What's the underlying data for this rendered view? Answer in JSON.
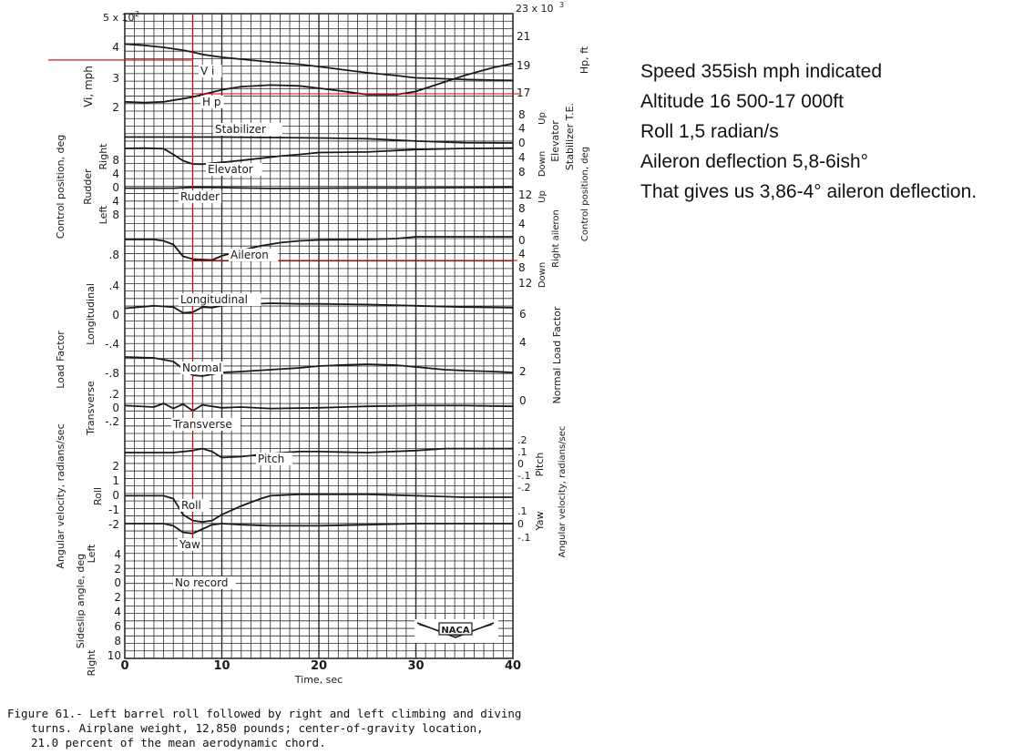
{
  "chart_data": {
    "type": "line",
    "figure_caption": "Figure 61.- Left barrel roll followed by right and left climbing and diving turns. Airplane weight, 12,850 pounds; center-of-gravity location, 21.0 percent of the mean aerodynamic chord.",
    "caption_lines": [
      "Figure 61.- Left barrel roll followed by right and left climbing and diving",
      "turns.  Airplane weight, 12,850 pounds; center-of-gravity location,",
      "21.0 percent of the mean aerodynamic chord."
    ],
    "xlabel": "Time, sec",
    "xlim": [
      0,
      40
    ],
    "x_ticks": [
      "0",
      "10",
      "20",
      "30",
      "40"
    ],
    "grid": true,
    "logo": "NACA",
    "left_axis": {
      "exponent": "5 x 10",
      "exponent_power": "2",
      "speed_ticks": [
        "4",
        "3",
        "2"
      ],
      "speed_label": "V_i, mph",
      "control_ticks": [
        "8",
        "4",
        "0",
        "4",
        "8"
      ],
      "control_label": "Control position, deg",
      "control_right": "Right",
      "control_left": "Left",
      "control_rudder": "Rudder",
      "long_ticks": [
        ".8",
        ".4",
        "0",
        "-.4",
        "-.8"
      ],
      "long_label": "Longitudinal",
      "load_label": "Load Factor",
      "trans_ticks": [
        ".2",
        "0",
        "-.2"
      ],
      "trans_label": "Transverse",
      "roll_ticks": [
        "2",
        "1",
        "0",
        "-1",
        "-2"
      ],
      "angvel_label": "Angular velocity, radians/sec",
      "roll_label": "Roll",
      "sideslip_ticks": [
        "4",
        "2",
        "0",
        "2",
        "4",
        "6",
        "8",
        "10"
      ],
      "sideslip_label": "Sideslip angle, deg",
      "sideslip_left": "Left",
      "sideslip_right": "Right"
    },
    "right_axis": {
      "alt_exponent": "23 x 10",
      "alt_exponent_power": "3",
      "alt_ticks": [
        "21",
        "19",
        "17"
      ],
      "alt_label": "H_p, ft",
      "elevator_ticks": [
        "8",
        "4",
        "0",
        "4",
        "8",
        "12"
      ],
      "elevator_up": "Up",
      "elevator_down": "Down",
      "elevator_label": "Elevator",
      "stabilizer_label": "Stabilizer T.E.",
      "control_label": "Control position, deg",
      "aileron_ticks": [
        "8",
        "4",
        "0",
        "4",
        "8",
        "12"
      ],
      "aileron_up": "Up",
      "aileron_down": "Down",
      "aileron_label": "Right aileron",
      "normal_ticks": [
        "6",
        "4",
        "2",
        "0"
      ],
      "normal_label": "Normal Load Factor",
      "pitch_ticks": [
        ".2",
        ".1",
        "0",
        "-.1",
        "-.2"
      ],
      "pitch_label": "Pitch",
      "yaw_ticks": [
        ".1",
        "0",
        "-.1"
      ],
      "yaw_label": "Yaw",
      "angvel_label": "Angular velocity, radians/sec"
    },
    "trace_labels": {
      "vi": "V_i",
      "hp": "H_p",
      "stabilizer": "Stabilizer",
      "elevator": "Elevator",
      "rudder": "Rudder",
      "aileron": "Aileron",
      "longitudinal": "Longitudinal",
      "normal": "Normal",
      "transverse": "Transverse",
      "pitch": "Pitch",
      "roll": "Roll",
      "yaw": "Yaw",
      "no_record": "No record"
    },
    "series": [
      {
        "name": "Vi",
        "x": [
          0,
          2,
          4,
          6,
          7,
          8,
          10,
          12,
          15,
          18,
          20,
          22,
          25,
          28,
          30,
          32,
          35,
          38,
          40
        ],
        "y": [
          412,
          407,
          400,
          390,
          383,
          375,
          365,
          358,
          348,
          340,
          332,
          323,
          310,
          300,
          292,
          290,
          286,
          284,
          283
        ]
      },
      {
        "name": "Hp",
        "x": [
          0,
          2,
          4,
          6,
          7,
          8,
          10,
          12,
          15,
          18,
          20,
          22,
          25,
          28,
          30,
          32,
          35,
          38,
          40
        ],
        "y": [
          16500,
          16450,
          16500,
          16700,
          16800,
          16950,
          17250,
          17450,
          17550,
          17500,
          17350,
          17200,
          16950,
          16950,
          17150,
          17550,
          18150,
          18650,
          18900
        ]
      },
      {
        "name": "Stabilizer",
        "x": [
          0,
          5,
          10,
          15,
          20,
          25,
          30,
          35,
          40
        ],
        "y": [
          2.5,
          2.5,
          2.5,
          2.3,
          2.1,
          1.8,
          0.8,
          0.1,
          0.0
        ]
      },
      {
        "name": "Elevator",
        "x": [
          0,
          2,
          4,
          5,
          6,
          7,
          8,
          9,
          10,
          12,
          14,
          16,
          18,
          20,
          25,
          30,
          35,
          40
        ],
        "y": [
          1.0,
          1.1,
          0.9,
          -1.2,
          -3.5,
          -4.7,
          -4.8,
          -4.4,
          -4.1,
          -3.4,
          -2.6,
          -1.8,
          -1.2,
          -0.5,
          -0.3,
          0.6,
          1.0,
          1.1
        ]
      },
      {
        "name": "Rudder",
        "x": [
          0,
          5,
          7,
          10,
          15,
          20,
          25,
          30,
          35,
          40
        ],
        "y": [
          -0.2,
          -0.2,
          0.1,
          0.0,
          -0.3,
          -0.2,
          -0.1,
          -0.1,
          0.0,
          0.1
        ]
      },
      {
        "name": "Aileron",
        "x": [
          0,
          3,
          4,
          5,
          6,
          7,
          8,
          9,
          10,
          12,
          14,
          16,
          18,
          20,
          25,
          28,
          30,
          35,
          40
        ],
        "y": [
          0.0,
          0.0,
          -0.3,
          -1.1,
          -3.7,
          -4.3,
          -4.4,
          -4.5,
          -3.6,
          -2.4,
          -1.4,
          -0.7,
          -0.3,
          -0.1,
          0.0,
          0.2,
          0.6,
          0.6,
          0.6
        ]
      },
      {
        "name": "Longitudinal",
        "x": [
          0,
          3,
          4,
          5,
          6,
          7,
          8,
          9,
          10,
          12,
          15,
          18,
          20,
          25,
          30,
          35,
          40
        ],
        "y": [
          0.02,
          0.06,
          0.05,
          0.04,
          -0.05,
          -0.04,
          0.04,
          0.03,
          0.06,
          0.08,
          0.1,
          0.09,
          0.09,
          0.08,
          0.06,
          0.04,
          0.03
        ]
      },
      {
        "name": "Normal",
        "x": [
          0,
          3,
          4,
          5,
          6,
          7,
          8,
          9,
          10,
          12,
          15,
          18,
          20,
          22,
          25,
          28,
          30,
          33,
          35,
          38,
          40
        ],
        "y": [
          1.6,
          1.5,
          1.3,
          1.1,
          0.3,
          -0.4,
          -0.5,
          -0.3,
          -0.1,
          0.0,
          0.2,
          0.4,
          0.6,
          0.7,
          0.8,
          0.7,
          0.5,
          0.2,
          0.1,
          0.0,
          -0.1
        ]
      },
      {
        "name": "Transverse",
        "x": [
          0,
          3,
          4,
          5,
          6,
          7,
          8,
          10,
          12,
          15,
          20,
          25,
          30,
          35,
          40
        ],
        "y": [
          0.02,
          0.0,
          0.05,
          -0.02,
          0.04,
          -0.05,
          0.03,
          -0.01,
          0.0,
          -0.02,
          -0.01,
          0.01,
          0.02,
          0.02,
          0.01
        ]
      },
      {
        "name": "Pitch",
        "x": [
          0,
          5,
          7,
          8,
          9,
          10,
          12,
          15,
          18,
          20,
          25,
          30,
          33,
          35,
          40
        ],
        "y": [
          0.0,
          0.0,
          0.02,
          0.04,
          0.01,
          -0.05,
          -0.04,
          -0.01,
          0.01,
          0.01,
          0.0,
          0.02,
          0.04,
          0.04,
          0.04
        ]
      },
      {
        "name": "Roll",
        "x": [
          0,
          4,
          5,
          6,
          7,
          8,
          9,
          10,
          12,
          14,
          15,
          18,
          20,
          25,
          30,
          35,
          40
        ],
        "y": [
          0.1,
          0.1,
          -0.1,
          -1.2,
          -1.6,
          -1.7,
          -1.6,
          -1.2,
          -0.6,
          -0.1,
          0.1,
          0.2,
          0.2,
          0.2,
          0.1,
          0.0,
          0.0
        ]
      },
      {
        "name": "Yaw",
        "x": [
          0,
          3,
          4,
          5,
          6,
          7,
          8,
          9,
          10,
          12,
          15,
          20,
          25,
          30,
          35,
          40
        ],
        "y": [
          0.0,
          0.0,
          0.0,
          -0.02,
          -0.08,
          -0.09,
          -0.05,
          -0.01,
          0.0,
          -0.01,
          -0.02,
          -0.02,
          -0.01,
          0.0,
          0.0,
          0.0
        ]
      }
    ],
    "annotations": {
      "vertical_line_time": 7,
      "speed_reading": 355,
      "altitude_reading": 17000,
      "aileron_reading": -4.6
    }
  },
  "notes": [
    "Speed 355ish mph indicated",
    "Altitude 16 500-17 000ft",
    "Roll 1,5 radian/s",
    "Aileron deflection 5,8-6ish°",
    "That gives us 3,86-4° aileron deflection."
  ],
  "colors": {
    "ink": "#1a1a1a",
    "grid": "#2b2b2b",
    "annotation": "#d40000",
    "background": "#ffffff"
  }
}
